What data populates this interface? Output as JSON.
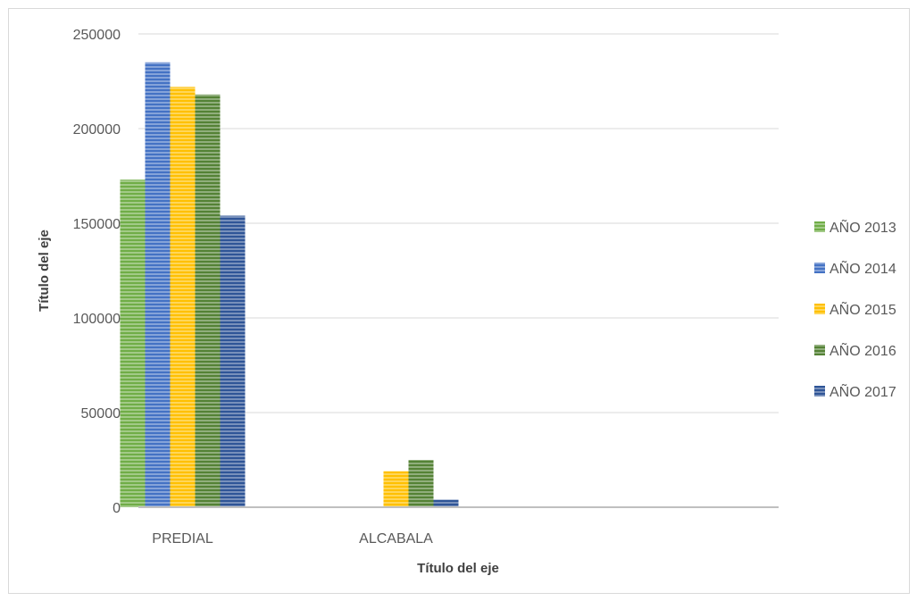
{
  "chart_data": {
    "type": "bar",
    "categories": [
      "PREDIAL",
      "ALCABALA"
    ],
    "series": [
      {
        "name": "AÑO 2013",
        "values": [
          173000,
          0
        ],
        "color": "#70AD47"
      },
      {
        "name": "AÑO 2014",
        "values": [
          235000,
          0
        ],
        "color": "#4472C4"
      },
      {
        "name": "AÑO 2015",
        "values": [
          222000,
          19000
        ],
        "color": "#FFC000"
      },
      {
        "name": "AÑO 2016",
        "values": [
          218000,
          25000
        ],
        "color": "#548235"
      },
      {
        "name": "AÑO 2017",
        "values": [
          154000,
          4000
        ],
        "color": "#2F5597"
      }
    ],
    "ylim": [
      0,
      250000
    ],
    "yticks": [
      "0",
      "50000",
      "100000",
      "150000",
      "200000",
      "250000"
    ],
    "xlabel": "Título del eje",
    "ylabel": "Título del eje",
    "legend_position": "right",
    "grid": true
  }
}
